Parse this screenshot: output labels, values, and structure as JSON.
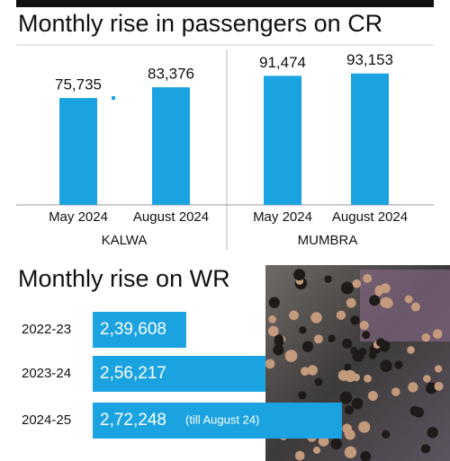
{
  "chart_data": [
    {
      "type": "bar",
      "title": "Monthly rise in passengers on CR",
      "categories": [
        "May 2024",
        "August 2024",
        "May 2024",
        "August 2024"
      ],
      "groups": [
        "KALWA",
        "MUMBRA"
      ],
      "values": [
        75735,
        83376,
        91474,
        93153
      ],
      "value_labels": [
        "75,735",
        "83,376",
        "91,474",
        "93,153"
      ],
      "color": "#1ba3e1",
      "ylim": [
        0,
        100000
      ]
    },
    {
      "type": "hbar",
      "title": "Monthly rise on WR",
      "categories": [
        "2022-23",
        "2023-24",
        "2024-25"
      ],
      "values": [
        239608,
        256217,
        272248
      ],
      "value_labels": [
        "2,39,608",
        "2,56,217",
        "2,72,248"
      ],
      "annotation": "(till August 24)",
      "color": "#1ba3e1",
      "xlim": [
        220000,
        280000
      ]
    }
  ]
}
